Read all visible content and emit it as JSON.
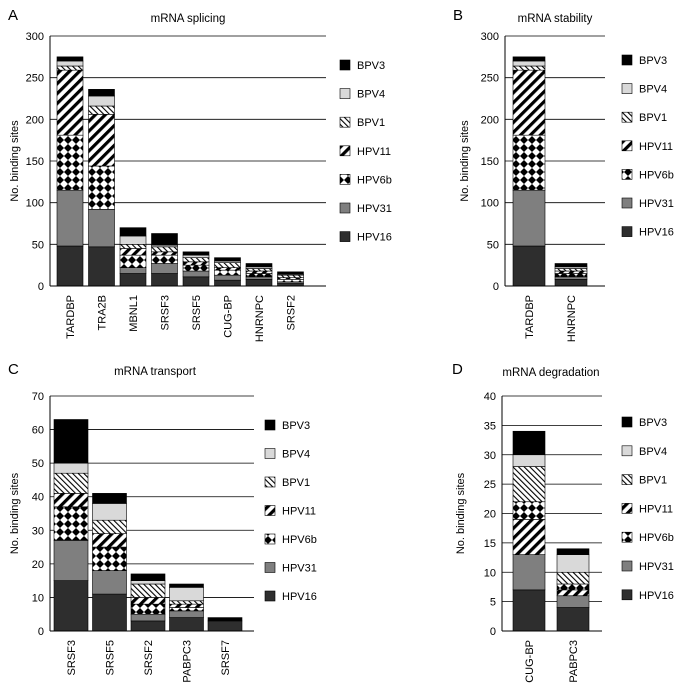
{
  "series_style": {
    "HPV16": {
      "color": "#2e2e2e",
      "pattern": "solid"
    },
    "HPV31": {
      "color": "#7f7f7f",
      "pattern": "solid"
    },
    "HPV6b": {
      "color": "#000000",
      "pattern": "diamond-checker"
    },
    "HPV11": {
      "color": "#000000",
      "pattern": "wide-diagonal"
    },
    "BPV1": {
      "color": "#000000",
      "pattern": "thin-diagonal"
    },
    "BPV4": {
      "color": "#d9d9d9",
      "pattern": "solid"
    },
    "BPV3": {
      "color": "#000000",
      "pattern": "solid"
    }
  },
  "chart_data": [
    {
      "panel": "A",
      "type": "bar",
      "stacked": true,
      "title": "mRNA splicing",
      "ylabel": "No. binding sites",
      "ylim": [
        0,
        300
      ],
      "yticks": [
        0,
        50,
        100,
        150,
        200,
        250,
        300
      ],
      "grid": true,
      "legend_position": "right",
      "legend_order": [
        "BPV3",
        "BPV4",
        "BPV1",
        "HPV11",
        "HPV6b",
        "HPV31",
        "HPV16"
      ],
      "categories": [
        "TARDBP",
        "TRA2B",
        "MBNL1",
        "SRSF3",
        "SRSF5",
        "CUG-BP",
        "HNRNPC",
        "SRSF2"
      ],
      "series": [
        {
          "name": "HPV16",
          "values": [
            48,
            47,
            15,
            15,
            11,
            7,
            8,
            3
          ]
        },
        {
          "name": "HPV31",
          "values": [
            67,
            45,
            7,
            12,
            7,
            6,
            3,
            2
          ]
        },
        {
          "name": "HPV6b",
          "values": [
            66,
            52,
            15,
            10,
            7,
            6,
            4,
            3
          ]
        },
        {
          "name": "HPV11",
          "values": [
            78,
            62,
            8,
            4,
            4,
            3,
            3,
            2
          ]
        },
        {
          "name": "BPV1",
          "values": [
            5,
            10,
            5,
            6,
            5,
            6,
            3,
            3
          ]
        },
        {
          "name": "BPV4",
          "values": [
            6,
            12,
            10,
            2,
            3,
            2,
            2,
            1
          ]
        },
        {
          "name": "BPV3",
          "values": [
            5,
            8,
            10,
            14,
            4,
            4,
            4,
            3
          ]
        }
      ]
    },
    {
      "panel": "B",
      "type": "bar",
      "stacked": true,
      "title": "mRNA stability",
      "ylabel": "No. binding sites",
      "ylim": [
        0,
        300
      ],
      "yticks": [
        0,
        50,
        100,
        150,
        200,
        250,
        300
      ],
      "grid": true,
      "legend_position": "right",
      "legend_order": [
        "BPV3",
        "BPV4",
        "BPV1",
        "HPV11",
        "HPV6b",
        "HPV31",
        "HPV16"
      ],
      "categories": [
        "TARDBP",
        "HNRNPC"
      ],
      "series": [
        {
          "name": "HPV16",
          "values": [
            48,
            8
          ]
        },
        {
          "name": "HPV31",
          "values": [
            67,
            3
          ]
        },
        {
          "name": "HPV6b",
          "values": [
            66,
            4
          ]
        },
        {
          "name": "HPV11",
          "values": [
            78,
            3
          ]
        },
        {
          "name": "BPV1",
          "values": [
            5,
            3
          ]
        },
        {
          "name": "BPV4",
          "values": [
            6,
            2
          ]
        },
        {
          "name": "BPV3",
          "values": [
            5,
            4
          ]
        }
      ]
    },
    {
      "panel": "C",
      "type": "bar",
      "stacked": true,
      "title": "mRNA transport",
      "ylabel": "No. binding sites",
      "ylim": [
        0,
        70
      ],
      "yticks": [
        0,
        10,
        20,
        30,
        40,
        50,
        60,
        70
      ],
      "grid": true,
      "legend_position": "right",
      "legend_order": [
        "BPV3",
        "BPV4",
        "BPV1",
        "HPV11",
        "HPV6b",
        "HPV31",
        "HPV16"
      ],
      "categories": [
        "SRSF3",
        "SRSF5",
        "SRSF2",
        "PABPC3",
        "SRSF7"
      ],
      "series": [
        {
          "name": "HPV16",
          "values": [
            15,
            11,
            3,
            4,
            3
          ]
        },
        {
          "name": "HPV31",
          "values": [
            12,
            7,
            2,
            2,
            0
          ]
        },
        {
          "name": "HPV6b",
          "values": [
            10,
            7,
            3,
            1,
            0
          ]
        },
        {
          "name": "HPV11",
          "values": [
            4,
            4,
            2,
            1,
            0
          ]
        },
        {
          "name": "BPV1",
          "values": [
            6,
            4,
            4,
            1,
            0
          ]
        },
        {
          "name": "BPV4",
          "values": [
            3,
            5,
            1,
            4,
            0
          ]
        },
        {
          "name": "BPV3",
          "values": [
            13,
            3,
            2,
            1,
            1
          ]
        }
      ]
    },
    {
      "panel": "D",
      "type": "bar",
      "stacked": true,
      "title": "mRNA degradation",
      "ylabel": "No. binding sites",
      "ylim": [
        0,
        40
      ],
      "yticks": [
        0,
        5,
        10,
        15,
        20,
        25,
        30,
        35,
        40
      ],
      "grid": true,
      "legend_position": "right",
      "legend_order": [
        "BPV3",
        "BPV4",
        "BPV1",
        "HPV11",
        "HPV6b",
        "HPV31",
        "HPV16"
      ],
      "categories": [
        "CUG-BP",
        "PABPC3"
      ],
      "series": [
        {
          "name": "HPV16",
          "values": [
            7,
            4
          ]
        },
        {
          "name": "HPV31",
          "values": [
            6,
            2
          ]
        },
        {
          "name": "HPV11",
          "values": [
            6,
            1
          ]
        },
        {
          "name": "HPV6b",
          "values": [
            3,
            1
          ]
        },
        {
          "name": "BPV1",
          "values": [
            6,
            2
          ]
        },
        {
          "name": "BPV4",
          "values": [
            2,
            3
          ]
        },
        {
          "name": "BPV3",
          "values": [
            4,
            1
          ]
        }
      ]
    }
  ]
}
